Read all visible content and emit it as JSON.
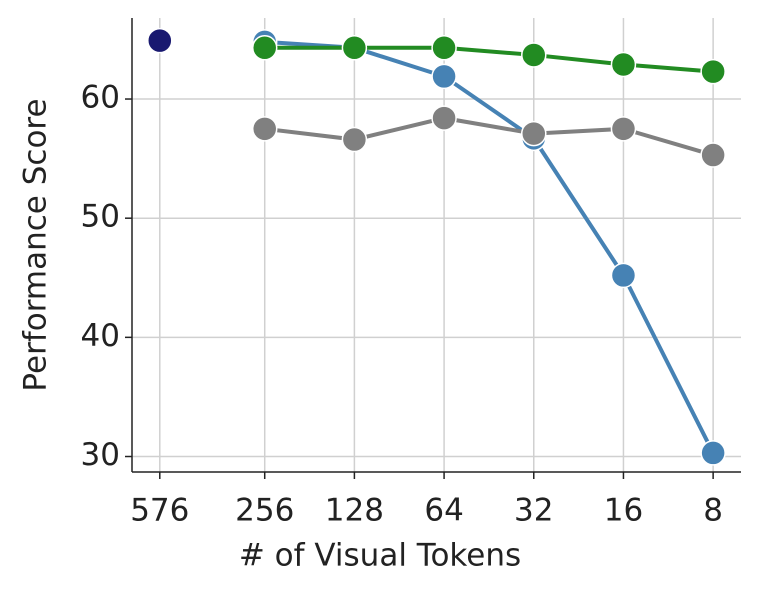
{
  "chart_data": {
    "type": "line",
    "xlabel": "# of Visual Tokens",
    "ylabel": "Performance Score",
    "xscale": "log",
    "xlim": [
      714,
      6.45
    ],
    "xticks": [
      576,
      256,
      128,
      64,
      32,
      16,
      8
    ],
    "ylim": [
      28.7,
      66.8
    ],
    "yticks": [
      30,
      40,
      50,
      60
    ],
    "grid": true,
    "series": [
      {
        "color": "#191970",
        "x": [
          576
        ],
        "values": [
          64.9
        ]
      },
      {
        "color": "#4682b4",
        "x": [
          256,
          128,
          64,
          32,
          16,
          8
        ],
        "values": [
          64.8,
          64.3,
          61.9,
          56.7,
          45.2,
          30.3
        ]
      },
      {
        "color": "#228b22",
        "x": [
          256,
          128,
          64,
          32,
          16,
          8
        ],
        "values": [
          64.3,
          64.3,
          64.3,
          63.7,
          62.9,
          62.3
        ]
      },
      {
        "color": "#808080",
        "x": [
          256,
          128,
          64,
          32,
          16,
          8
        ],
        "values": [
          57.5,
          56.6,
          58.4,
          57.1,
          57.5,
          55.3
        ]
      }
    ]
  }
}
